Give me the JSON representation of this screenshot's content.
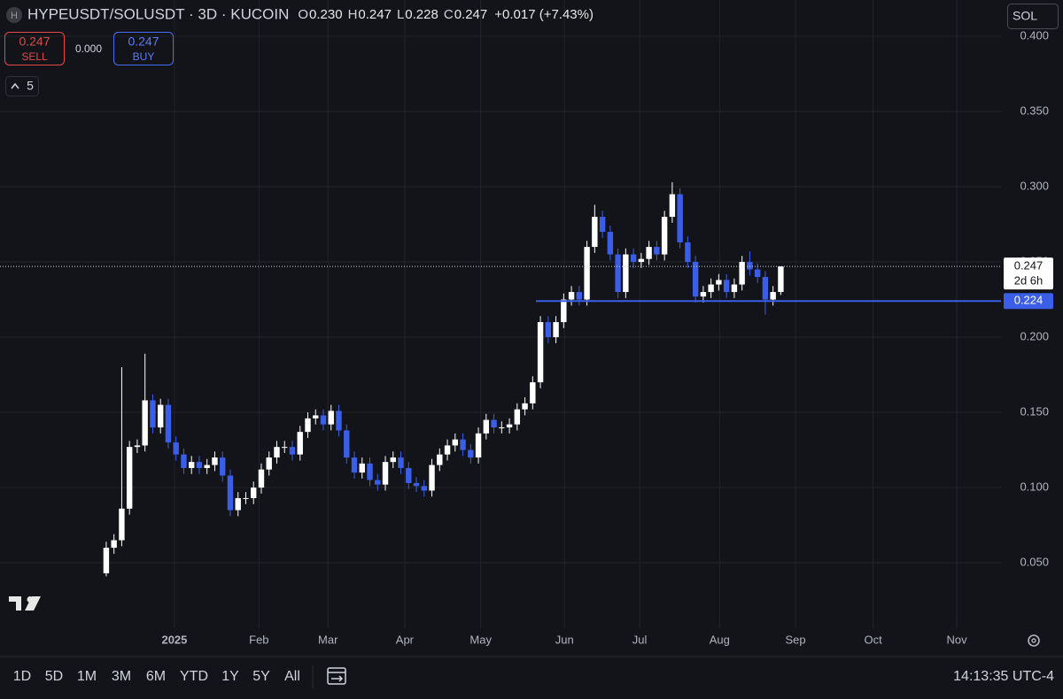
{
  "chart_data": {
    "type": "candlestick",
    "symbol_icon": "H",
    "title": "HYPEUSDT/SOLUSDT · 3D · KUCOIN",
    "ohlc_header": [
      {
        "label": "O",
        "value": "0.230"
      },
      {
        "label": "H",
        "value": "0.247"
      },
      {
        "label": "L",
        "value": "0.228"
      },
      {
        "label": "C",
        "value": "0.247"
      }
    ],
    "change": "+0.017 (+7.43%)",
    "trade_panel": {
      "sell_price": "0.247",
      "sell_label": "SELL",
      "spread": "0.000",
      "buy_price": "0.247",
      "buy_label": "BUY"
    },
    "indicator_count": "5",
    "currency_button": "SOL",
    "up_color": "#ffffff",
    "down_color": "#3a5ee8",
    "grid": true,
    "categories": [
      null,
      null,
      null,
      null,
      null,
      null,
      null,
      null,
      null,
      null,
      null,
      null,
      null,
      null,
      null,
      null,
      null,
      null,
      null,
      null,
      null,
      null,
      null,
      null,
      null,
      null,
      null,
      null,
      null,
      null,
      null,
      null,
      null,
      null,
      null,
      null,
      null,
      null,
      null,
      null,
      null,
      null,
      null,
      null,
      null,
      null,
      null,
      null,
      null,
      null,
      null,
      null,
      null,
      null,
      null,
      null,
      null,
      null,
      null,
      null,
      null,
      null,
      null,
      null,
      null,
      null,
      null,
      null,
      null,
      null,
      null,
      null,
      null,
      null,
      null,
      null,
      null,
      null,
      null,
      null,
      null,
      null,
      null,
      null,
      null,
      null,
      null,
      null
    ],
    "open": [
      0.043,
      0.06,
      0.065,
      0.086,
      0.127,
      0.128,
      0.158,
      0.14,
      0.155,
      0.13,
      0.122,
      0.113,
      0.117,
      0.113,
      0.115,
      0.12,
      0.108,
      0.085,
      0.093,
      0.093,
      0.1,
      0.112,
      0.12,
      0.127,
      0.127,
      0.122,
      0.137,
      0.146,
      0.148,
      0.142,
      0.151,
      0.138,
      0.12,
      0.11,
      0.116,
      0.105,
      0.102,
      0.117,
      0.12,
      0.113,
      0.103,
      0.101,
      0.098,
      0.115,
      0.122,
      0.128,
      0.132,
      0.125,
      0.12,
      0.136,
      0.145,
      0.14,
      0.14,
      0.142,
      0.152,
      0.156,
      0.17,
      0.21,
      0.2,
      0.21,
      0.225,
      0.23,
      0.225,
      0.26,
      0.28,
      0.27,
      0.255,
      0.23,
      0.255,
      0.25,
      0.252,
      0.26,
      0.255,
      0.28,
      0.295,
      0.263,
      0.25,
      0.227,
      0.23,
      0.235,
      0.238,
      0.23,
      0.235,
      0.25,
      0.245,
      0.24,
      0.225,
      0.23
    ],
    "high": [
      0.064,
      0.069,
      0.18,
      0.131,
      0.132,
      0.189,
      0.162,
      0.159,
      0.159,
      0.134,
      0.126,
      0.121,
      0.121,
      0.119,
      0.124,
      0.124,
      0.112,
      0.097,
      0.097,
      0.104,
      0.116,
      0.124,
      0.131,
      0.131,
      0.131,
      0.141,
      0.15,
      0.152,
      0.152,
      0.155,
      0.155,
      0.142,
      0.124,
      0.12,
      0.12,
      0.109,
      0.121,
      0.124,
      0.124,
      0.117,
      0.107,
      0.105,
      0.119,
      0.126,
      0.132,
      0.136,
      0.136,
      0.129,
      0.14,
      0.149,
      0.149,
      0.144,
      0.146,
      0.156,
      0.16,
      0.174,
      0.214,
      0.214,
      0.214,
      0.229,
      0.234,
      0.234,
      0.264,
      0.288,
      0.284,
      0.274,
      0.259,
      0.259,
      0.259,
      0.256,
      0.264,
      0.264,
      0.284,
      0.303,
      0.299,
      0.267,
      0.254,
      0.234,
      0.239,
      0.242,
      0.242,
      0.239,
      0.254,
      0.257,
      0.249,
      0.244,
      0.234,
      0.247
    ],
    "low": [
      0.041,
      0.056,
      0.061,
      0.082,
      0.123,
      0.124,
      0.136,
      0.136,
      0.126,
      0.118,
      0.109,
      0.109,
      0.109,
      0.109,
      0.111,
      0.104,
      0.081,
      0.081,
      0.089,
      0.089,
      0.096,
      0.108,
      0.116,
      0.123,
      0.118,
      0.118,
      0.133,
      0.142,
      0.138,
      0.138,
      0.134,
      0.116,
      0.106,
      0.106,
      0.101,
      0.098,
      0.098,
      0.113,
      0.109,
      0.099,
      0.097,
      0.094,
      0.094,
      0.111,
      0.118,
      0.124,
      0.121,
      0.116,
      0.116,
      0.132,
      0.136,
      0.136,
      0.136,
      0.138,
      0.148,
      0.152,
      0.166,
      0.196,
      0.196,
      0.206,
      0.221,
      0.221,
      0.221,
      0.256,
      0.266,
      0.251,
      0.226,
      0.226,
      0.246,
      0.246,
      0.248,
      0.251,
      0.251,
      0.276,
      0.259,
      0.246,
      0.223,
      0.223,
      0.226,
      0.231,
      0.226,
      0.226,
      0.231,
      0.241,
      0.236,
      0.215,
      0.221,
      0.228
    ],
    "close": [
      0.06,
      0.065,
      0.086,
      0.127,
      0.128,
      0.158,
      0.14,
      0.155,
      0.13,
      0.122,
      0.113,
      0.117,
      0.113,
      0.115,
      0.12,
      0.108,
      0.085,
      0.093,
      0.093,
      0.1,
      0.112,
      0.12,
      0.127,
      0.127,
      0.122,
      0.137,
      0.146,
      0.148,
      0.142,
      0.151,
      0.138,
      0.12,
      0.11,
      0.116,
      0.105,
      0.102,
      0.117,
      0.12,
      0.113,
      0.103,
      0.101,
      0.098,
      0.115,
      0.122,
      0.128,
      0.132,
      0.125,
      0.12,
      0.136,
      0.145,
      0.14,
      0.14,
      0.142,
      0.152,
      0.156,
      0.17,
      0.21,
      0.2,
      0.21,
      0.225,
      0.23,
      0.225,
      0.26,
      0.28,
      0.27,
      0.255,
      0.23,
      0.255,
      0.25,
      0.252,
      0.26,
      0.255,
      0.28,
      0.295,
      0.263,
      0.25,
      0.227,
      0.23,
      0.235,
      0.238,
      0.23,
      0.235,
      0.25,
      0.245,
      0.24,
      0.225,
      0.23,
      0.247
    ],
    "xlim": [
      -13.7,
      115.4
    ],
    "xticks": [
      {
        "value": 8.8,
        "label": "2025"
      },
      {
        "value": 19.7,
        "label": "Feb"
      },
      {
        "value": 28.6,
        "label": "Mar"
      },
      {
        "value": 38.5,
        "label": "Apr"
      },
      {
        "value": 48.3,
        "label": "May"
      },
      {
        "value": 59.1,
        "label": "Jun"
      },
      {
        "value": 68.8,
        "label": "Jul"
      },
      {
        "value": 79.1,
        "label": "Aug"
      },
      {
        "value": 88.9,
        "label": "Sep"
      },
      {
        "value": 98.9,
        "label": "Oct"
      },
      {
        "value": 109.7,
        "label": "Nov"
      }
    ],
    "ylim": [
      0.0065,
      0.4065
    ],
    "yticks": [
      {
        "value": 0.4,
        "label": "0.400"
      },
      {
        "value": 0.35,
        "label": "0.350"
      },
      {
        "value": 0.3,
        "label": "0.300"
      },
      {
        "value": 0.25,
        "label": "0.250"
      },
      {
        "value": 0.2,
        "label": "0.200"
      },
      {
        "value": 0.15,
        "label": "0.150"
      },
      {
        "value": 0.1,
        "label": "0.100"
      },
      {
        "value": 0.05,
        "label": "0.050"
      }
    ],
    "current_price": {
      "value": 0.247,
      "label": "0.247"
    },
    "countdown": "2d 6h",
    "horizontal_line": {
      "value": 0.224,
      "label": "0.224"
    },
    "range_buttons": [
      "1D",
      "5D",
      "1M",
      "3M",
      "6M",
      "YTD",
      "1Y",
      "5Y",
      "All"
    ],
    "clock": "14:13:35 UTC-4"
  }
}
